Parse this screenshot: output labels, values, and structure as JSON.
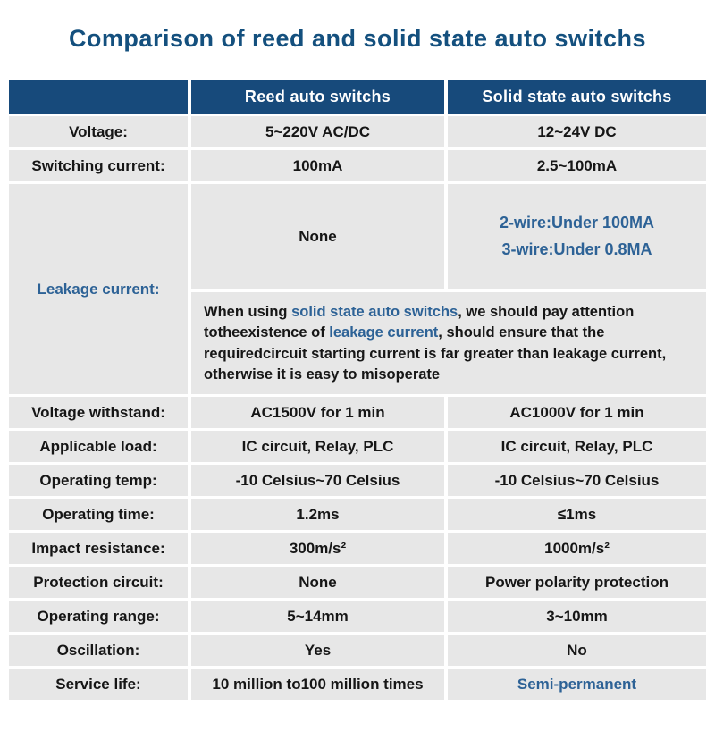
{
  "title": "Comparison of reed and solid state auto switchs",
  "colors": {
    "navy_header": "#174A7B",
    "title_blue": "#14507E",
    "accent_blue": "#2D6296",
    "cell_gray": "#E7E7E7",
    "body_text": "#161616"
  },
  "table": {
    "headers": {
      "blank": "",
      "reed": "Reed auto switchs",
      "solid": "Solid state auto switchs"
    },
    "rows_top": [
      {
        "label": "Voltage:",
        "reed": "5~220V AC/DC",
        "solid": "12~24V DC"
      },
      {
        "label": "Switching current:",
        "reed": "100mA",
        "solid": "2.5~100mA"
      }
    ],
    "leakage": {
      "label": "Leakage current:",
      "reed": "None",
      "solid_line1": "2-wire:Under 100MA",
      "solid_line2": "3-wire:Under 0.8MA",
      "note_segments": [
        {
          "text": "When using "
        },
        {
          "text": "solid state auto switchs"
        },
        {
          "text": ", we should pay attention totheexistence of "
        },
        {
          "text": "leakage current"
        },
        {
          "text": ", should ensure that the requiredcircuit starting current is far greater than leakage current, otherwise it is easy to misoperate"
        }
      ]
    },
    "rows_bottom": [
      {
        "label": "Voltage withstand:",
        "reed": "AC1500V for 1 min",
        "solid": "AC1000V for 1 min"
      },
      {
        "label": "Applicable load:",
        "reed": "IC circuit, Relay, PLC",
        "solid": "IC circuit, Relay, PLC"
      },
      {
        "label": "Operating temp:",
        "reed": "-10 Celsius~70 Celsius",
        "solid": "-10 Celsius~70 Celsius"
      },
      {
        "label": "Operating time:",
        "reed": "1.2ms",
        "solid": "≤1ms"
      },
      {
        "label": "Impact resistance:",
        "reed": "300m/s²",
        "solid": "1000m/s²"
      },
      {
        "label": "Protection circuit:",
        "reed": "None",
        "solid": "Power polarity protection"
      },
      {
        "label": "Operating range:",
        "reed": "5~14mm",
        "solid": "3~10mm"
      },
      {
        "label": "Oscillation:",
        "reed": "Yes",
        "solid": "No"
      },
      {
        "label": "Service life:",
        "reed": "10 million to100 million times",
        "solid": "Semi-permanent"
      }
    ]
  }
}
